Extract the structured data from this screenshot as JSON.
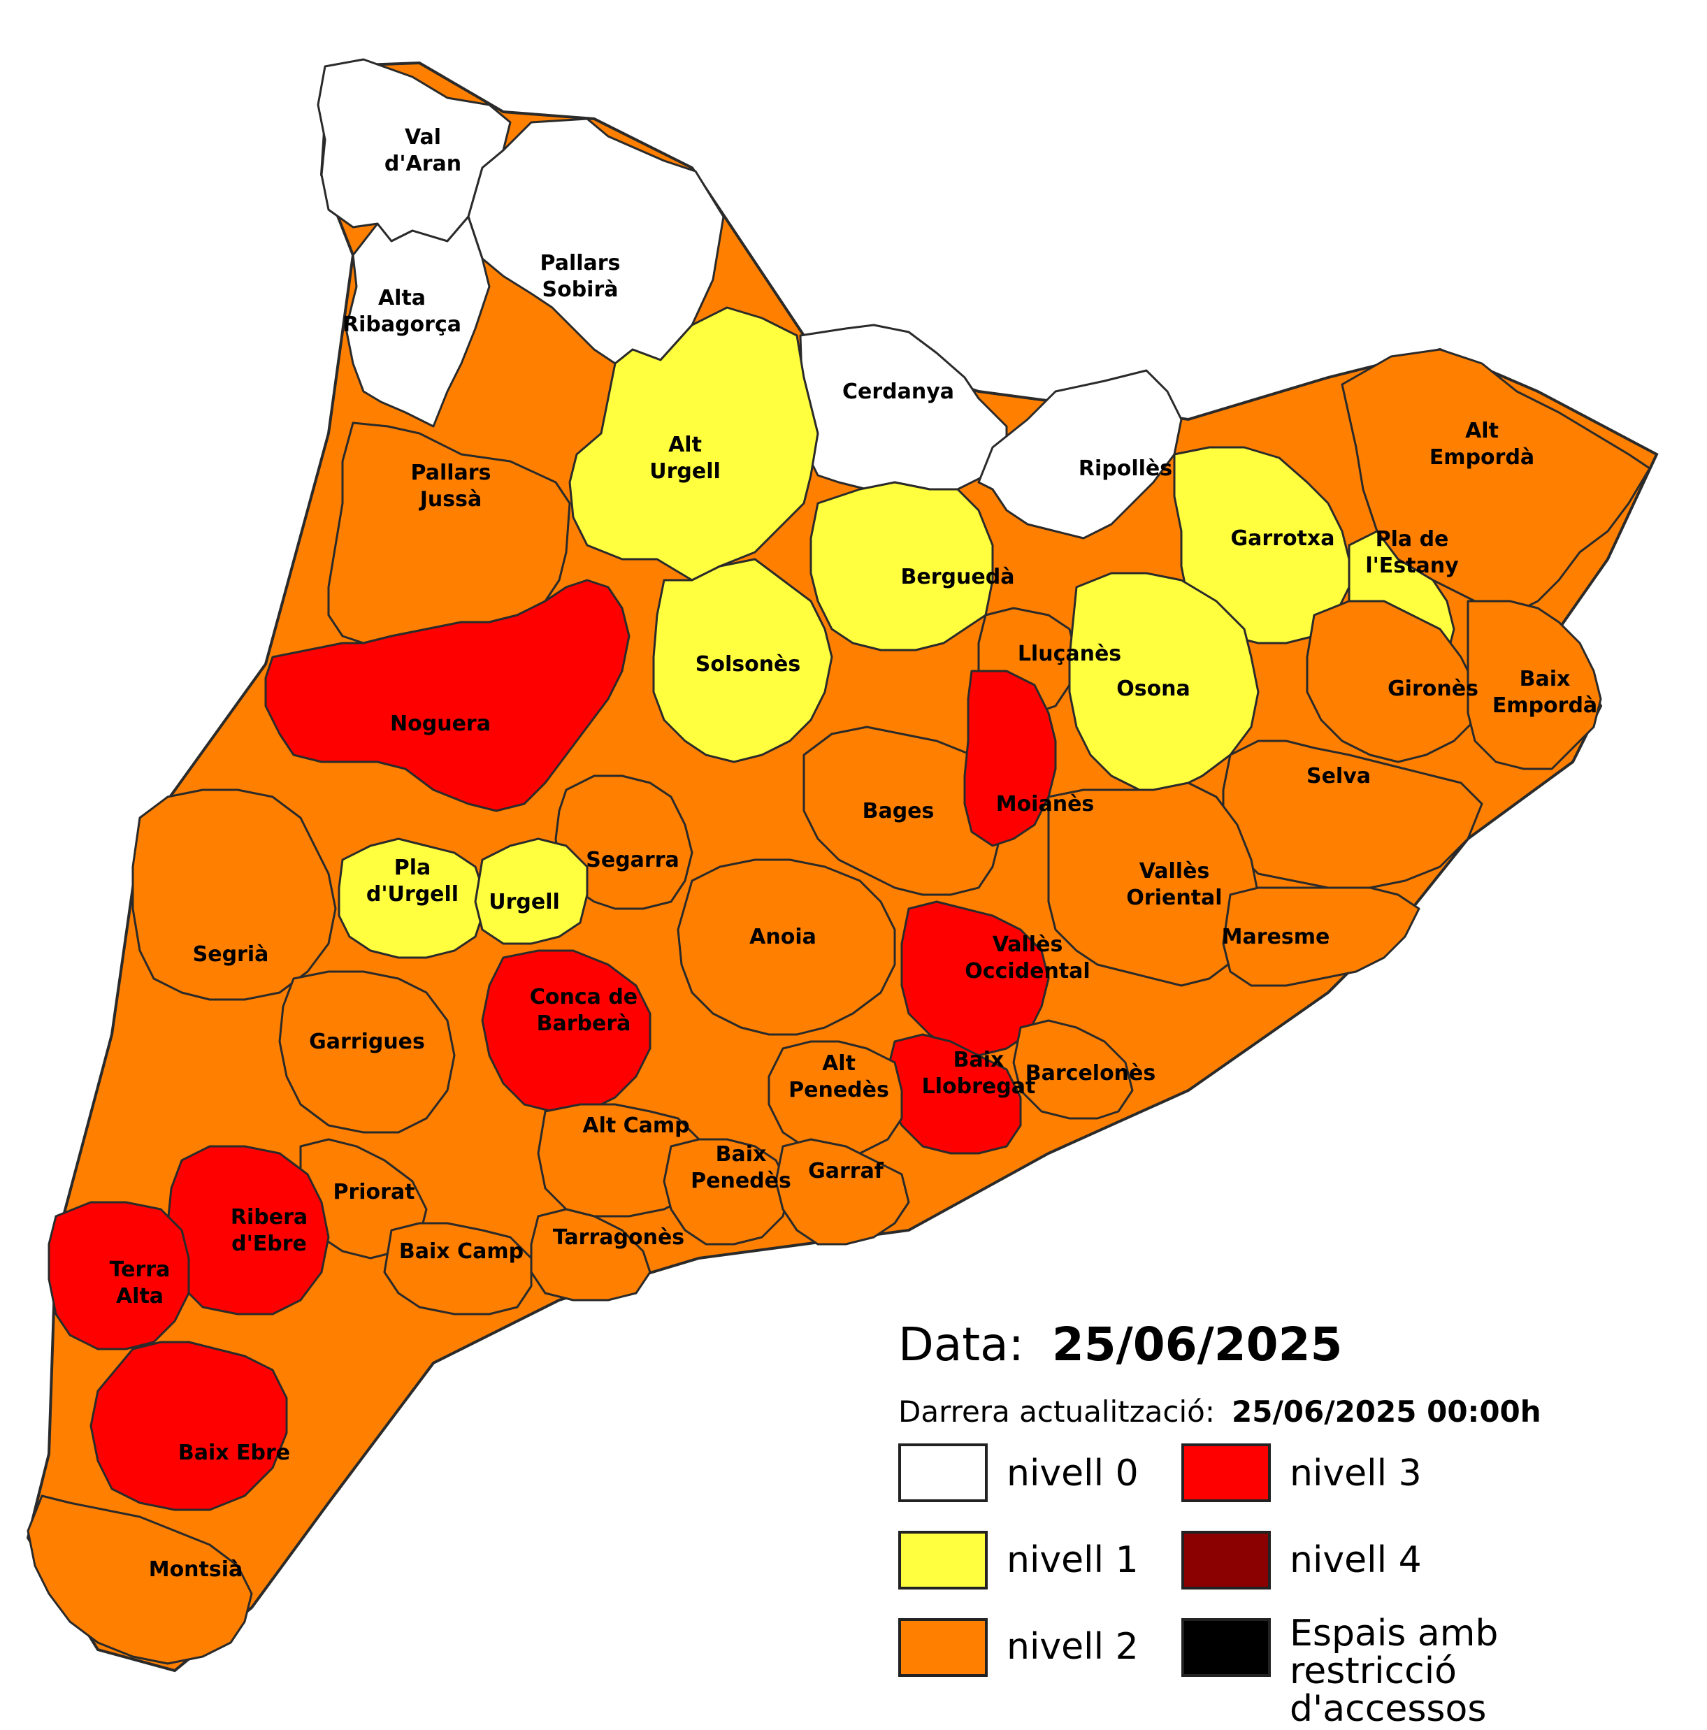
{
  "map": {
    "comarques": [
      {
        "name": "Val\nd'Aran",
        "level": 0
      },
      {
        "name": "Pallars\nSobirà",
        "level": 0
      },
      {
        "name": "Alta\nRibagorça",
        "level": 0
      },
      {
        "name": "Cerdanya",
        "level": 0
      },
      {
        "name": "Alt\nUrgell",
        "level": 1
      },
      {
        "name": "Ripollès",
        "level": 0
      },
      {
        "name": "Alt\nEmpordà",
        "level": 2
      },
      {
        "name": "Pallars\nJussà",
        "level": 2
      },
      {
        "name": "Garrotxa",
        "level": 1
      },
      {
        "name": "Berguedà",
        "level": 1
      },
      {
        "name": "Pla de\nl'Estany",
        "level": 1
      },
      {
        "name": "Lluçanès",
        "level": 2
      },
      {
        "name": "Solsonès",
        "level": 1
      },
      {
        "name": "Noguera",
        "level": 3
      },
      {
        "name": "Osona",
        "level": 1
      },
      {
        "name": "Gironès",
        "level": 2
      },
      {
        "name": "Baix\nEmpordà",
        "level": 2
      },
      {
        "name": "Selva",
        "level": 2
      },
      {
        "name": "Bages",
        "level": 2
      },
      {
        "name": "Moianès",
        "level": 3
      },
      {
        "name": "Segarra",
        "level": 2
      },
      {
        "name": "Pla\nd'Urgell",
        "level": 1
      },
      {
        "name": "Urgell",
        "level": 1
      },
      {
        "name": "Vallès\nOriental",
        "level": 2
      },
      {
        "name": "Maresme",
        "level": 2
      },
      {
        "name": "Anoia",
        "level": 2
      },
      {
        "name": "Segrià",
        "level": 2
      },
      {
        "name": "Vallès\nOccidental",
        "level": 3
      },
      {
        "name": "Conca de\nBarberà",
        "level": 3
      },
      {
        "name": "Garrigues",
        "level": 2
      },
      {
        "name": "Baix\nLlobregat",
        "level": 3
      },
      {
        "name": "Barcelonès",
        "level": 2
      },
      {
        "name": "Alt\nPenedès",
        "level": 2
      },
      {
        "name": "Alt Camp",
        "level": 2
      },
      {
        "name": "Baix\nPenedès",
        "level": 2
      },
      {
        "name": "Garraf",
        "level": 2
      },
      {
        "name": "Priorat",
        "level": 2
      },
      {
        "name": "Ribera\nd'Ebre",
        "level": 3
      },
      {
        "name": "Tarragonès",
        "level": 2
      },
      {
        "name": "Baix Camp",
        "level": 2
      },
      {
        "name": "Terra\nAlta",
        "level": 3
      },
      {
        "name": "Baix Ebre",
        "level": 3
      },
      {
        "name": "Montsià",
        "level": 2
      }
    ]
  },
  "header": {
    "date_label": "Data:",
    "date_value": "25/06/2025",
    "update_label": "Darrera actualització:",
    "update_value": "25/06/2025 00:00h"
  },
  "legend": {
    "items": [
      {
        "label": "nivell 0",
        "color": "#ffffff"
      },
      {
        "label": "nivell 1",
        "color": "#ffff40"
      },
      {
        "label": "nivell 2",
        "color": "#ff8000"
      },
      {
        "label": "nivell 3",
        "color": "#ff0000"
      },
      {
        "label": "nivell 4",
        "color": "#8b0000"
      },
      {
        "label": "Espais amb restricció d'accessos",
        "color": "#000000"
      }
    ]
  },
  "colors": {
    "level0": "#ffffff",
    "level1": "#ffff40",
    "level2": "#ff8000",
    "level3": "#ff0000",
    "level4": "#8b0000",
    "restricted": "#000000",
    "border": "#2a2a2a"
  }
}
